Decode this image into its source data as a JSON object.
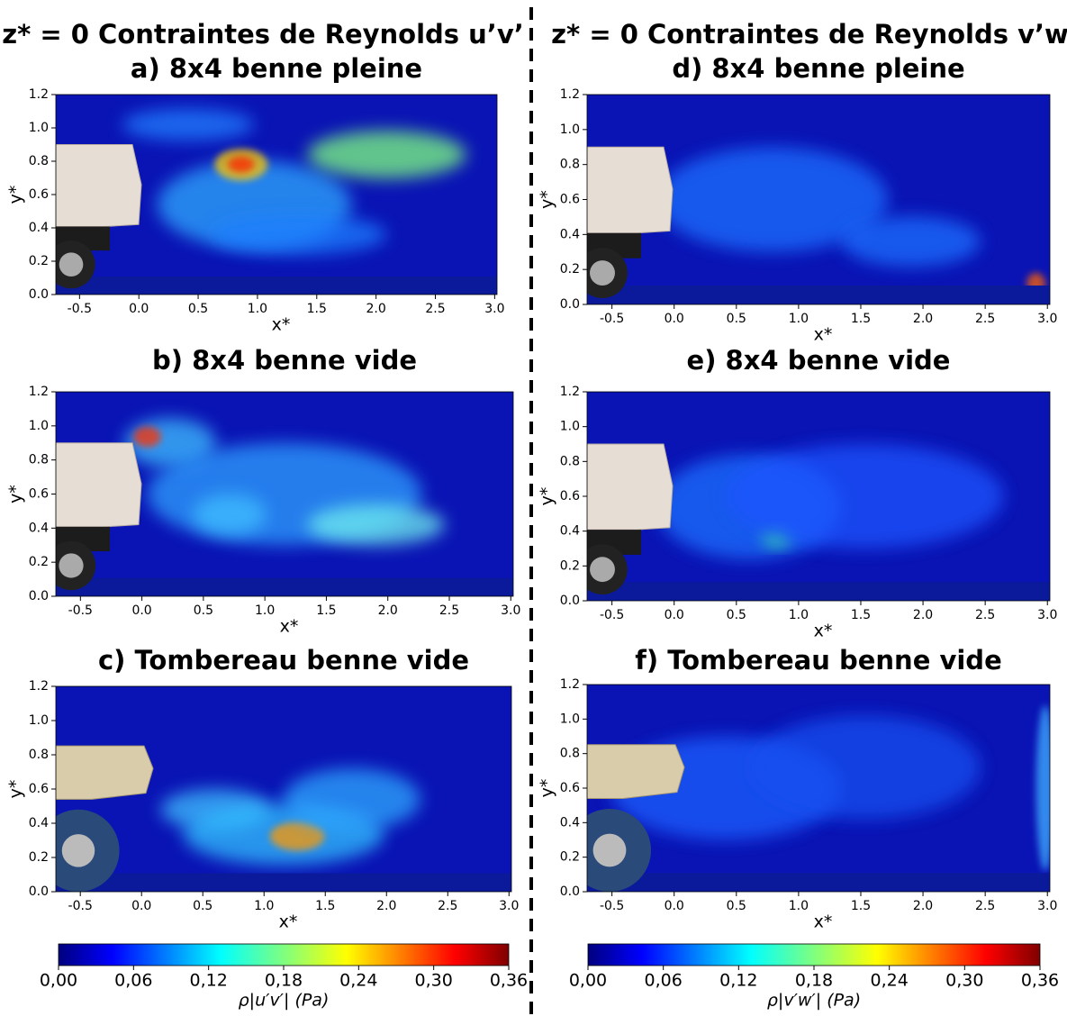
{
  "figure": {
    "column_titles": [
      "z* = 0 Contraintes de Reynolds u’v’",
      "z* = 0 Contraintes de Reynolds v’w’"
    ]
  },
  "chart_data": [
    {
      "type": "heatmap",
      "title": "a) 8x4 benne pleine",
      "xlabel": "x*",
      "ylabel": "y*",
      "xlim": [
        -0.7,
        3.02
      ],
      "ylim": [
        0,
        1.2
      ],
      "xticks": [
        -0.5,
        {
          "value": 0,
          "label": "0.0"
        },
        0.5,
        {
          "value": 1,
          "label": "1.0"
        },
        1.5,
        {
          "value": 2,
          "label": "2.0"
        },
        2.5,
        {
          "value": 3,
          "label": "3.0"
        }
      ],
      "yticks": [
        {
          "value": 0,
          "label": "0.0"
        },
        0.2,
        0.4,
        0.6,
        0.8,
        {
          "value": 1,
          "label": "1.0"
        },
        1.2
      ]
    },
    {
      "type": "heatmap",
      "title": "b) 8x4 benne vide",
      "xlabel": "x*",
      "ylabel": "y*",
      "xlim": [
        -0.7,
        3.02
      ],
      "ylim": [
        0,
        1.2
      ],
      "xticks": [
        -0.5,
        {
          "value": 0,
          "label": "0.0"
        },
        0.5,
        {
          "value": 1,
          "label": "1.0"
        },
        1.5,
        {
          "value": 2,
          "label": "2.0"
        },
        2.5,
        {
          "value": 3,
          "label": "3.0"
        }
      ],
      "yticks": [
        {
          "value": 0,
          "label": "0.0"
        },
        0.2,
        0.4,
        0.6,
        0.8,
        {
          "value": 1,
          "label": "1.0"
        },
        1.2
      ]
    },
    {
      "type": "heatmap",
      "title": "c) Tombereau benne vide",
      "xlabel": "x*",
      "ylabel": "y*",
      "xlim": [
        -0.7,
        3.02
      ],
      "ylim": [
        0,
        1.2
      ],
      "xticks": [
        -0.5,
        {
          "value": 0,
          "label": "0.0"
        },
        0.5,
        {
          "value": 1,
          "label": "1.0"
        },
        1.5,
        {
          "value": 2,
          "label": "2.0"
        },
        2.5,
        {
          "value": 3,
          "label": "3.0"
        }
      ],
      "yticks": [
        {
          "value": 0,
          "label": "0.0"
        },
        0.2,
        0.4,
        0.6,
        0.8,
        {
          "value": 1,
          "label": "1.0"
        },
        1.2
      ]
    },
    {
      "type": "heatmap",
      "title": "d) 8x4 benne pleine",
      "xlabel": "x*",
      "ylabel": "y*",
      "xlim": [
        -0.7,
        3.02
      ],
      "ylim": [
        0,
        1.2
      ],
      "xticks": [
        -0.5,
        {
          "value": 0,
          "label": "0.0"
        },
        0.5,
        {
          "value": 1,
          "label": "1.0"
        },
        1.5,
        {
          "value": 2,
          "label": "2.0"
        },
        2.5,
        {
          "value": 3,
          "label": "3.0"
        }
      ],
      "yticks": [
        {
          "value": 0,
          "label": "0.0"
        },
        0.2,
        0.4,
        0.6,
        0.8,
        {
          "value": 1,
          "label": "1.0"
        },
        1.2
      ]
    },
    {
      "type": "heatmap",
      "title": "e) 8x4 benne vide",
      "xlabel": "x*",
      "ylabel": "y*",
      "xlim": [
        -0.7,
        3.02
      ],
      "ylim": [
        0,
        1.2
      ],
      "xticks": [
        -0.5,
        {
          "value": 0,
          "label": "0.0"
        },
        0.5,
        {
          "value": 1,
          "label": "1.0"
        },
        1.5,
        {
          "value": 2,
          "label": "2.0"
        },
        2.5,
        {
          "value": 3,
          "label": "3.0"
        }
      ],
      "yticks": [
        {
          "value": 0,
          "label": "0.0"
        },
        0.2,
        0.4,
        0.6,
        0.8,
        {
          "value": 1,
          "label": "1.0"
        },
        1.2
      ]
    },
    {
      "type": "heatmap",
      "title": "f) Tombereau benne vide",
      "xlabel": "x*",
      "ylabel": "y*",
      "xlim": [
        -0.7,
        3.02
      ],
      "ylim": [
        0,
        1.2
      ],
      "xticks": [
        -0.5,
        {
          "value": 0,
          "label": "0.0"
        },
        0.5,
        {
          "value": 1,
          "label": "1.0"
        },
        1.5,
        {
          "value": 2,
          "label": "2.0"
        },
        2.5,
        {
          "value": 3,
          "label": "3.0"
        }
      ],
      "yticks": [
        {
          "value": 0,
          "label": "0.0"
        },
        0.2,
        0.4,
        0.6,
        0.8,
        {
          "value": 1,
          "label": "1.0"
        },
        1.2
      ]
    },
    {
      "type": "colorbar",
      "label": "ρ|u′v′| (Pa)",
      "xlim": [
        0,
        0.36
      ],
      "xticks": [
        {
          "value": 0,
          "label": "0,00"
        },
        {
          "value": 0.06,
          "label": "0,06"
        },
        {
          "value": 0.12,
          "label": "0,12"
        },
        {
          "value": 0.18,
          "label": "0,18"
        },
        {
          "value": 0.24,
          "label": "0,24"
        },
        {
          "value": 0.3,
          "label": "0,30"
        },
        {
          "value": 0.36,
          "label": "0,36"
        }
      ]
    },
    {
      "type": "colorbar",
      "label": "ρ|v′w′| (Pa)",
      "xlim": [
        0,
        0.36
      ],
      "xticks": [
        {
          "value": 0,
          "label": "0,00"
        },
        {
          "value": 0.06,
          "label": "0,06"
        },
        {
          "value": 0.12,
          "label": "0,12"
        },
        {
          "value": 0.18,
          "label": "0,18"
        },
        {
          "value": 0.24,
          "label": "0,24"
        },
        {
          "value": 0.3,
          "label": "0,30"
        },
        {
          "value": 0.36,
          "label": "0,36"
        }
      ]
    }
  ]
}
